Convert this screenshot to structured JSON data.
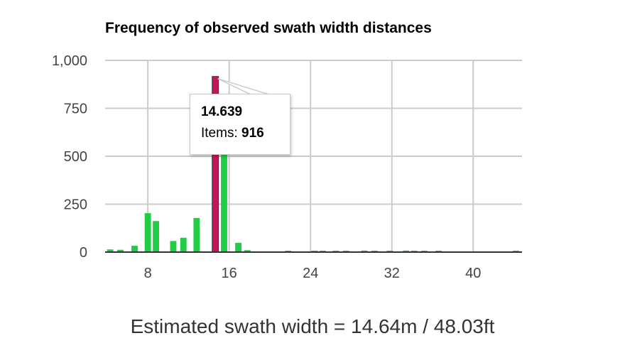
{
  "chart_data": {
    "type": "bar",
    "title": "Frequency of observed swath width distances",
    "xlabel": "",
    "ylabel": "",
    "ylim": [
      0,
      1000
    ],
    "xlim": [
      3.8,
      44.8
    ],
    "y_ticks": [
      0,
      250,
      500,
      750,
      1000
    ],
    "y_tick_labels": [
      "0",
      "250",
      "500",
      "750",
      "1,000"
    ],
    "x_ticks": [
      8,
      16,
      24,
      32,
      40
    ],
    "x_tick_labels": [
      "8",
      "16",
      "24",
      "32",
      "40"
    ],
    "grid": true,
    "bar_color": "#22cc44",
    "highlight_color": "#c2185b",
    "x": [
      4.3,
      5.3,
      6.7,
      8.0,
      8.8,
      10.5,
      11.5,
      12.8,
      14.64,
      15.5,
      16.9,
      17.8,
      21.8,
      24.4,
      25.2,
      26.5,
      27.5,
      29.3,
      30.3,
      31.8,
      33.4,
      34.2,
      35.2,
      36.6,
      44.2
    ],
    "values": [
      14,
      12,
      33,
      203,
      162,
      58,
      75,
      178,
      916,
      580,
      48,
      10,
      5,
      4,
      3,
      4,
      5,
      8,
      6,
      5,
      8,
      5,
      4,
      5,
      4
    ],
    "highlight_index": 8,
    "tooltip": {
      "x_value": "14.639",
      "label": "Items: ",
      "value": "916"
    }
  },
  "caption": "Estimated swath width = 14.64m / 48.03ft"
}
